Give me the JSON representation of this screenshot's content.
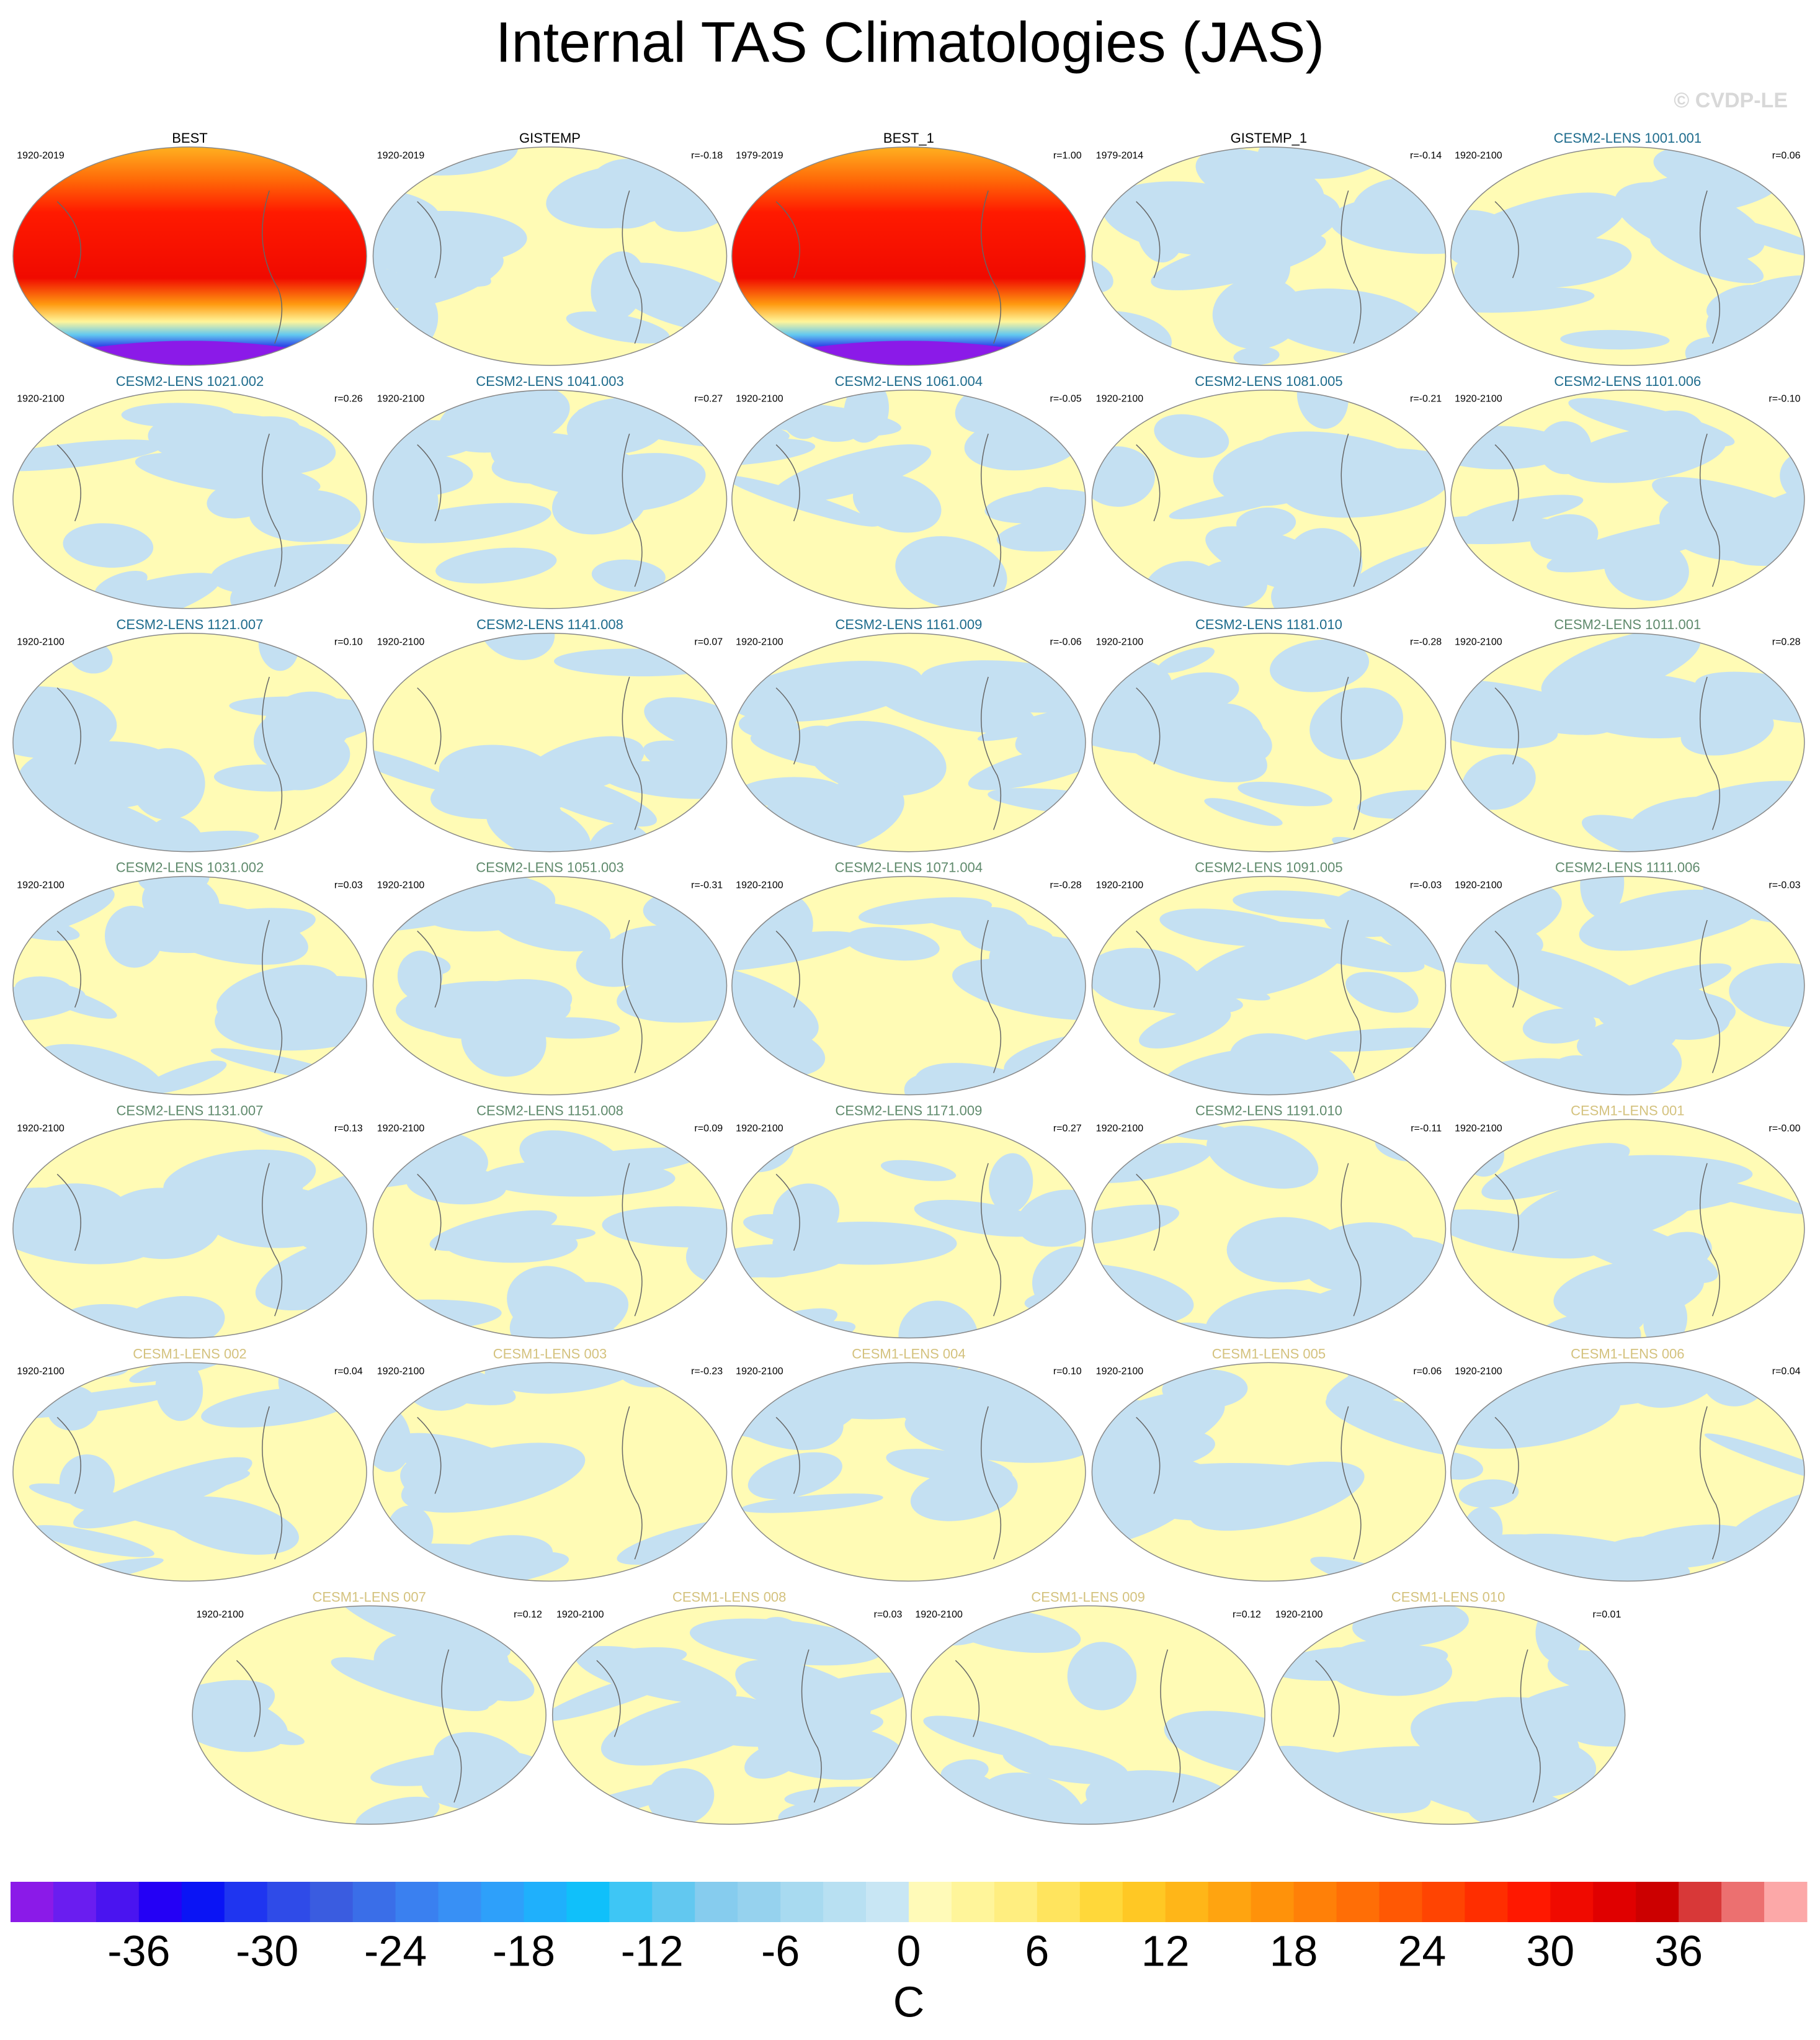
{
  "title": "Internal TAS Climatologies (JAS)",
  "watermark": "© CVDP-LE",
  "panels": [
    {
      "label": "BEST",
      "years": "1920-2019",
      "r": null,
      "color": "#000000"
    },
    {
      "label": "GISTEMP",
      "years": "1920-2019",
      "r": "r=-0.18",
      "color": "#000000"
    },
    {
      "label": "BEST_1",
      "years": "1979-2019",
      "r": "r=1.00",
      "color": "#000000"
    },
    {
      "label": "GISTEMP_1",
      "years": "1979-2014",
      "r": "r=-0.14",
      "color": "#000000"
    },
    {
      "label": "CESM2-LENS 1001.001",
      "years": "1920-2100",
      "r": "r=0.06",
      "color": "#1d6b8c"
    },
    {
      "label": "CESM2-LENS 1021.002",
      "years": "1920-2100",
      "r": "r=0.26",
      "color": "#1d6b8c"
    },
    {
      "label": "CESM2-LENS 1041.003",
      "years": "1920-2100",
      "r": "r=0.27",
      "color": "#1d6b8c"
    },
    {
      "label": "CESM2-LENS 1061.004",
      "years": "1920-2100",
      "r": "r=-0.05",
      "color": "#1d6b8c"
    },
    {
      "label": "CESM2-LENS 1081.005",
      "years": "1920-2100",
      "r": "r=-0.21",
      "color": "#1d6b8c"
    },
    {
      "label": "CESM2-LENS 1101.006",
      "years": "1920-2100",
      "r": "r=-0.10",
      "color": "#1d6b8c"
    },
    {
      "label": "CESM2-LENS 1121.007",
      "years": "1920-2100",
      "r": "r=0.10",
      "color": "#1d6b8c"
    },
    {
      "label": "CESM2-LENS 1141.008",
      "years": "1920-2100",
      "r": "r=0.07",
      "color": "#1d6b8c"
    },
    {
      "label": "CESM2-LENS 1161.009",
      "years": "1920-2100",
      "r": "r=-0.06",
      "color": "#1d6b8c"
    },
    {
      "label": "CESM2-LENS 1181.010",
      "years": "1920-2100",
      "r": "r=-0.28",
      "color": "#1d6b8c"
    },
    {
      "label": "CESM2-LENS 1011.001",
      "years": "1920-2100",
      "r": "r=0.28",
      "color": "#5f8a6c"
    },
    {
      "label": "CESM2-LENS 1031.002",
      "years": "1920-2100",
      "r": "r=0.03",
      "color": "#5f8a6c"
    },
    {
      "label": "CESM2-LENS 1051.003",
      "years": "1920-2100",
      "r": "r=-0.31",
      "color": "#5f8a6c"
    },
    {
      "label": "CESM2-LENS 1071.004",
      "years": "1920-2100",
      "r": "r=-0.28",
      "color": "#5f8a6c"
    },
    {
      "label": "CESM2-LENS 1091.005",
      "years": "1920-2100",
      "r": "r=-0.03",
      "color": "#5f8a6c"
    },
    {
      "label": "CESM2-LENS 1111.006",
      "years": "1920-2100",
      "r": "r=-0.03",
      "color": "#5f8a6c"
    },
    {
      "label": "CESM2-LENS 1131.007",
      "years": "1920-2100",
      "r": "r=0.13",
      "color": "#5f8a6c"
    },
    {
      "label": "CESM2-LENS 1151.008",
      "years": "1920-2100",
      "r": "r=0.09",
      "color": "#5f8a6c"
    },
    {
      "label": "CESM2-LENS 1171.009",
      "years": "1920-2100",
      "r": "r=0.27",
      "color": "#5f8a6c"
    },
    {
      "label": "CESM2-LENS 1191.010",
      "years": "1920-2100",
      "r": "r=-0.11",
      "color": "#5f8a6c"
    },
    {
      "label": "CESM1-LENS 001",
      "years": "1920-2100",
      "r": "r=-0.00",
      "color": "#d4c27e"
    },
    {
      "label": "CESM1-LENS 002",
      "years": "1920-2100",
      "r": "r=0.04",
      "color": "#d4c27e"
    },
    {
      "label": "CESM1-LENS 003",
      "years": "1920-2100",
      "r": "r=-0.23",
      "color": "#d4c27e"
    },
    {
      "label": "CESM1-LENS 004",
      "years": "1920-2100",
      "r": "r=0.10",
      "color": "#d4c27e"
    },
    {
      "label": "CESM1-LENS 005",
      "years": "1920-2100",
      "r": "r=0.06",
      "color": "#d4c27e"
    },
    {
      "label": "CESM1-LENS 006",
      "years": "1920-2100",
      "r": "r=0.04",
      "color": "#d4c27e"
    },
    {
      "label": "CESM1-LENS 007",
      "years": "1920-2100",
      "r": "r=0.12",
      "color": "#d4c27e"
    },
    {
      "label": "CESM1-LENS 008",
      "years": "1920-2100",
      "r": "r=0.03",
      "color": "#d4c27e"
    },
    {
      "label": "CESM1-LENS 009",
      "years": "1920-2100",
      "r": "r=0.12",
      "color": "#d4c27e"
    },
    {
      "label": "CESM1-LENS 010",
      "years": "1920-2100",
      "r": "r=0.01",
      "color": "#d4c27e"
    }
  ],
  "colorbar": {
    "label": "C",
    "lim": [
      -42,
      42
    ],
    "ticks": [
      -36,
      -30,
      -24,
      -18,
      -12,
      -6,
      0,
      6,
      12,
      18,
      24,
      30,
      36
    ],
    "colors": [
      "#8b1ae8",
      "#6a1df0",
      "#4a14f0",
      "#2400f5",
      "#0a14f5",
      "#1f35f0",
      "#2f4be8",
      "#3a5ce0",
      "#3a6ee8",
      "#3a80f0",
      "#3890f5",
      "#2ea0fa",
      "#1fb0fc",
      "#10c0fa",
      "#3ec6f5",
      "#62c8f0",
      "#86ccee",
      "#96d2ee",
      "#a8daf0",
      "#b8e0f2",
      "#c8e6f4",
      "#fffab8",
      "#fff59a",
      "#ffee80",
      "#ffe45e",
      "#ffd83a",
      "#ffc824",
      "#ffb618",
      "#ffa410",
      "#ff920a",
      "#ff8008",
      "#ff6e06",
      "#ff5804",
      "#ff4402",
      "#ff2e00",
      "#ff1800",
      "#f00a00",
      "#e00000",
      "#cc0000",
      "#d83838",
      "#ec7070",
      "#fca8a8"
    ]
  }
}
